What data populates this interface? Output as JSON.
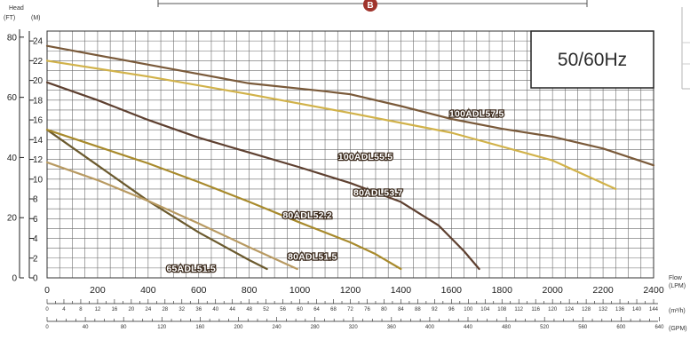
{
  "chart_data": {
    "type": "line",
    "header_badge": "B",
    "frequency_label": "50/60Hz",
    "left_axis": {
      "title": "Head",
      "units_ft": "(FT)",
      "units_m": "(M)",
      "ft_ticks": [
        "0",
        "20",
        "40",
        "60",
        "80"
      ],
      "m_ticks": [
        "0",
        "2",
        "4",
        "6",
        "8",
        "10",
        "12",
        "14",
        "16",
        "18",
        "20",
        "22",
        "24"
      ],
      "ylim_m": [
        0,
        25
      ]
    },
    "bottom_axes": {
      "lpm": {
        "title": "Flow",
        "unit": "(LPM)",
        "ticks": [
          "0",
          "200",
          "400",
          "600",
          "800",
          "1000",
          "1200",
          "1400",
          "1600",
          "1800",
          "2000",
          "2200",
          "2400"
        ],
        "xlim": [
          0,
          2400
        ]
      },
      "m3h": {
        "unit": "(m³/h)",
        "ticks": [
          "0",
          "4",
          "8",
          "12",
          "16",
          "20",
          "24",
          "28",
          "32",
          "36",
          "40",
          "44",
          "48",
          "52",
          "56",
          "60",
          "64",
          "68",
          "72",
          "76",
          "80",
          "84",
          "88",
          "92",
          "96",
          "100",
          "104",
          "108",
          "112",
          "116",
          "120",
          "124",
          "128",
          "132",
          "136",
          "140",
          "144"
        ]
      },
      "gpm": {
        "unit": "(GPM)",
        "ticks": [
          "0",
          "40",
          "80",
          "120",
          "160",
          "200",
          "240",
          "280",
          "320",
          "360",
          "400",
          "440",
          "480",
          "520",
          "560",
          "600",
          "640"
        ]
      }
    },
    "series": [
      {
        "name": "65ADL51.5",
        "color": "#6b5a2e",
        "points": [
          [
            0,
            15
          ],
          [
            200,
            11.4
          ],
          [
            400,
            7.8
          ],
          [
            600,
            4.6
          ],
          [
            800,
            1.8
          ],
          [
            870,
            0.9
          ]
        ]
      },
      {
        "name": "80ADL51.5",
        "color": "#b89a62",
        "points": [
          [
            0,
            11.7
          ],
          [
            200,
            9.9
          ],
          [
            400,
            7.8
          ],
          [
            600,
            5.5
          ],
          [
            800,
            3.1
          ],
          [
            990,
            0.9
          ]
        ]
      },
      {
        "name": "80ADL52.2",
        "color": "#a88a2c",
        "points": [
          [
            0,
            15
          ],
          [
            200,
            13.3
          ],
          [
            400,
            11.6
          ],
          [
            600,
            9.7
          ],
          [
            800,
            7.7
          ],
          [
            1000,
            5.6
          ],
          [
            1200,
            3.6
          ],
          [
            1300,
            2.4
          ],
          [
            1400,
            0.9
          ]
        ]
      },
      {
        "name": "80ADL53.7",
        "color": "#5e4030",
        "points": [
          [
            0,
            19.8
          ],
          [
            200,
            18.0
          ],
          [
            400,
            16.0
          ],
          [
            600,
            14.2
          ],
          [
            800,
            12.7
          ],
          [
            1000,
            11.2
          ],
          [
            1200,
            9.6
          ],
          [
            1400,
            7.7
          ],
          [
            1550,
            5.3
          ],
          [
            1650,
            2.7
          ],
          [
            1710,
            0.9
          ]
        ]
      },
      {
        "name": "100ADL55.5",
        "color": "#d1b24a",
        "points": [
          [
            0,
            22.0
          ],
          [
            400,
            20.4
          ],
          [
            800,
            18.6
          ],
          [
            1200,
            16.7
          ],
          [
            1600,
            14.7
          ],
          [
            2000,
            11.9
          ],
          [
            2250,
            9.0
          ]
        ]
      },
      {
        "name": "100ADL57.5",
        "color": "#7a5a3a",
        "points": [
          [
            0,
            23.5
          ],
          [
            400,
            21.6
          ],
          [
            800,
            19.7
          ],
          [
            1100,
            18.9
          ],
          [
            1200,
            18.6
          ],
          [
            1400,
            17.4
          ],
          [
            1600,
            16.1
          ],
          [
            1800,
            15.1
          ],
          [
            2000,
            14.3
          ],
          [
            2200,
            13.1
          ],
          [
            2400,
            11.4
          ]
        ]
      }
    ]
  }
}
